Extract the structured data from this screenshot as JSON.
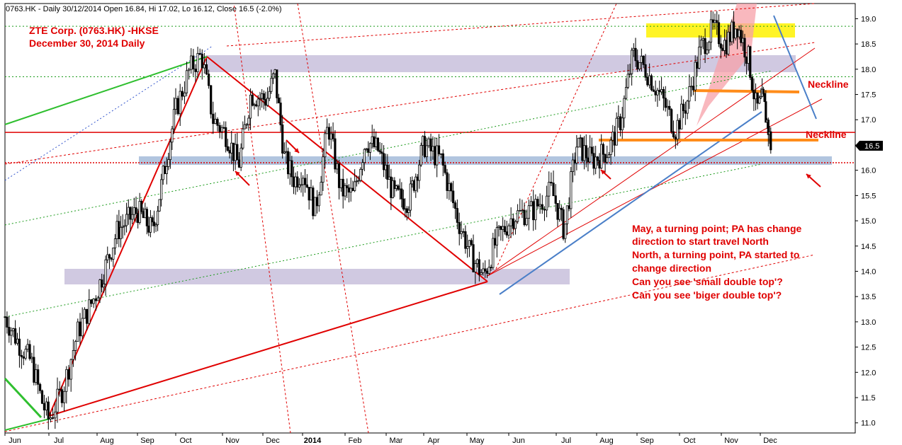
{
  "header": {
    "text": "0763.HK - Daily 30/12/2014 Open 16.84, Hi 17.02, Lo 16.12, Close 16.5 (-2.0%)"
  },
  "chart_data": {
    "type": "candlestick",
    "title_lines": [
      "ZTE Corp. (0763.HK) -HKSE",
      "December 30, 2014 Daily"
    ],
    "ylim": [
      10.8,
      19.3
    ],
    "y_ticks": [
      "11.0",
      "11.5",
      "12.0",
      "12.5",
      "13.0",
      "13.5",
      "14.0",
      "14.5",
      "15.0",
      "15.5",
      "16.0",
      "16.5",
      "17.0",
      "17.5",
      "18.0",
      "18.5",
      "19.0"
    ],
    "x_ticks": [
      {
        "label": "Jun",
        "m": 0.0,
        "bold": false
      },
      {
        "label": "Jul",
        "m": 1.0,
        "bold": false
      },
      {
        "label": "Aug",
        "m": 2.0,
        "bold": false
      },
      {
        "label": "Sep",
        "m": 3.0,
        "bold": false
      },
      {
        "label": "Oct",
        "m": 4.0,
        "bold": false
      },
      {
        "label": "Nov",
        "m": 5.0,
        "bold": false
      },
      {
        "label": "Dec",
        "m": 6.0,
        "bold": false
      },
      {
        "label": "2014",
        "m": 7.0,
        "bold": true
      },
      {
        "label": "Feb",
        "m": 8.0,
        "bold": false
      },
      {
        "label": "Mar",
        "m": 9.0,
        "bold": false
      },
      {
        "label": "Apr",
        "m": 10.0,
        "bold": false
      },
      {
        "label": "May",
        "m": 11.0,
        "bold": false
      },
      {
        "label": "Jun",
        "m": 12.0,
        "bold": false
      },
      {
        "label": "Jul",
        "m": 13.0,
        "bold": false
      },
      {
        "label": "Aug",
        "m": 14.0,
        "bold": false
      },
      {
        "label": "Sep",
        "m": 15.0,
        "bold": false
      },
      {
        "label": "Oct",
        "m": 16.0,
        "bold": false
      },
      {
        "label": "Nov",
        "m": 17.0,
        "bold": false
      },
      {
        "label": "Dec",
        "m": 18.0,
        "bold": false
      }
    ],
    "price_path": [
      [
        0.0,
        13.1
      ],
      [
        0.3,
        12.6
      ],
      [
        0.6,
        12.2
      ],
      [
        0.85,
        11.4
      ],
      [
        1.0,
        11.05
      ],
      [
        1.3,
        11.7
      ],
      [
        1.6,
        12.8
      ],
      [
        2.0,
        13.6
      ],
      [
        2.5,
        14.8
      ],
      [
        3.0,
        15.2
      ],
      [
        3.4,
        14.8
      ],
      [
        3.7,
        16.0
      ],
      [
        4.0,
        17.2
      ],
      [
        4.3,
        18.0
      ],
      [
        4.55,
        18.28
      ],
      [
        4.8,
        17.0
      ],
      [
        5.1,
        16.7
      ],
      [
        5.4,
        16.1
      ],
      [
        5.7,
        17.5
      ],
      [
        6.1,
        17.4
      ],
      [
        6.3,
        17.9
      ],
      [
        6.55,
        16.2
      ],
      [
        6.8,
        15.8
      ],
      [
        7.0,
        16.0
      ],
      [
        7.3,
        15.2
      ],
      [
        7.6,
        16.9
      ],
      [
        7.9,
        15.6
      ],
      [
        8.2,
        15.5
      ],
      [
        8.5,
        16.6
      ],
      [
        8.8,
        16.4
      ],
      [
        9.2,
        15.5
      ],
      [
        9.6,
        15.4
      ],
      [
        10.0,
        16.5
      ],
      [
        10.4,
        16.2
      ],
      [
        10.8,
        15.0
      ],
      [
        11.1,
        14.3
      ],
      [
        11.4,
        13.9
      ],
      [
        11.7,
        14.6
      ],
      [
        12.1,
        15.1
      ],
      [
        12.5,
        15.2
      ],
      [
        12.9,
        15.6
      ],
      [
        13.2,
        14.8
      ],
      [
        13.5,
        16.5
      ],
      [
        13.9,
        16.2
      ],
      [
        14.3,
        16.4
      ],
      [
        14.6,
        17.0
      ],
      [
        14.9,
        18.3
      ],
      [
        15.2,
        18.0
      ],
      [
        15.6,
        17.4
      ],
      [
        15.9,
        16.8
      ],
      [
        16.2,
        17.4
      ],
      [
        16.5,
        18.4
      ],
      [
        16.8,
        18.8
      ],
      [
        17.1,
        18.5
      ],
      [
        17.4,
        18.9
      ],
      [
        17.7,
        18.2
      ],
      [
        17.9,
        17.2
      ],
      [
        18.1,
        17.4
      ],
      [
        18.3,
        16.84
      ],
      [
        18.4,
        16.5
      ]
    ],
    "last_price": "16.5",
    "annotations": [
      "May, a turning point; PA has change",
      "direction to start travel North",
      "North, a turning point, PA started to",
      "change direction",
      "Can you see 'small double top'?",
      "Can you see 'biger double top'?"
    ],
    "neckline_labels": [
      "Neckline",
      "Neckline"
    ],
    "colors": {
      "up": "#000000",
      "down": "#000000",
      "support_line": "#e00000",
      "purple_band": "#cbc3de",
      "blue_band": "#a9bfdc",
      "yellow_band": "#fff200",
      "pink_wedge": "#f7a0a8",
      "orange_line": "#ff8c1a",
      "green_line": "#2fbf2f",
      "blue_line": "#4a7fc8",
      "green_dotted": "#1a9a1a"
    }
  }
}
